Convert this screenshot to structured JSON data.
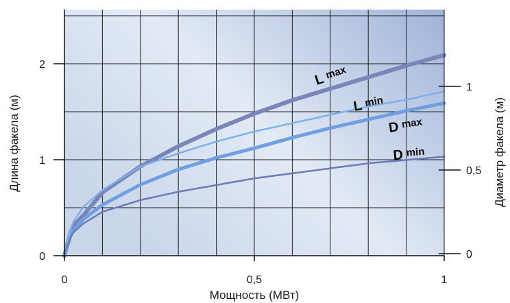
{
  "chart_data": {
    "type": "line",
    "xlabel": "Мощность (МВт)",
    "ylabel": "Длина факела (м)",
    "y2label": "Диаметр факела (м)",
    "xlim": [
      0,
      1
    ],
    "ylim": [
      0,
      2.5
    ],
    "y2lim": [
      0,
      1.2
    ],
    "grid": true,
    "x_ticks": [
      {
        "value": 0,
        "label": "0"
      },
      {
        "value": 0.5,
        "label": "0,5"
      },
      {
        "value": 1,
        "label": "1"
      }
    ],
    "y_ticks": [
      {
        "value": 0,
        "label": "0"
      },
      {
        "value": 1,
        "label": "1"
      },
      {
        "value": 2,
        "label": "2"
      }
    ],
    "y2_ticks": [
      {
        "value": 0,
        "label": "0"
      },
      {
        "value": 0.5,
        "label": "0,5"
      },
      {
        "value": 1,
        "label": "1"
      }
    ],
    "series": [
      {
        "name": "L max",
        "axis": "left",
        "color": "#7a85b8",
        "width": 6,
        "x": [
          0,
          0.02,
          0.05,
          0.1,
          0.2,
          0.3,
          0.4,
          0.5,
          0.6,
          0.7,
          0.8,
          0.9,
          1.0
        ],
        "y": [
          0,
          0.3,
          0.42,
          0.66,
          0.93,
          1.14,
          1.32,
          1.48,
          1.62,
          1.74,
          1.86,
          1.98,
          2.09
        ]
      },
      {
        "name": "L min",
        "axis": "left",
        "color": "#6f9fe0",
        "width": 5,
        "x": [
          0,
          0.02,
          0.05,
          0.1,
          0.2,
          0.3,
          0.4,
          0.5,
          0.6,
          0.7,
          0.8,
          0.9,
          1.0
        ],
        "y": [
          0,
          0.25,
          0.38,
          0.53,
          0.74,
          0.9,
          1.02,
          1.12,
          1.23,
          1.33,
          1.42,
          1.51,
          1.59
        ]
      },
      {
        "name": "D max",
        "axis": "right",
        "color": "#7fb0ea",
        "width": 2.5,
        "x": [
          0,
          0.02,
          0.05,
          0.1,
          0.2,
          0.3,
          0.4,
          0.5,
          0.6,
          0.7,
          0.8,
          0.9,
          1.0
        ],
        "y": [
          0,
          0.18,
          0.28,
          0.38,
          0.52,
          0.6,
          0.67,
          0.73,
          0.78,
          0.83,
          0.88,
          0.92,
          0.97
        ]
      },
      {
        "name": "D min",
        "axis": "right",
        "color": "#6c7ab5",
        "width": 2.5,
        "x": [
          0,
          0.02,
          0.05,
          0.1,
          0.2,
          0.3,
          0.4,
          0.5,
          0.6,
          0.7,
          0.8,
          0.9,
          1.0
        ],
        "y": [
          0,
          0.12,
          0.18,
          0.25,
          0.32,
          0.37,
          0.41,
          0.45,
          0.48,
          0.51,
          0.54,
          0.56,
          0.58
        ]
      }
    ],
    "labels": [
      {
        "series": "L max",
        "letter": "L",
        "sub": "max"
      },
      {
        "series": "L min",
        "letter": "L",
        "sub": "min"
      },
      {
        "series": "D max",
        "letter": "D",
        "sub": "max"
      },
      {
        "series": "D min",
        "letter": "D",
        "sub": "min"
      }
    ],
    "background_colors": [
      "#c9d6ea",
      "#e2eaf5",
      "#9fb2d8"
    ],
    "grid_color": "#1e1e1e"
  }
}
